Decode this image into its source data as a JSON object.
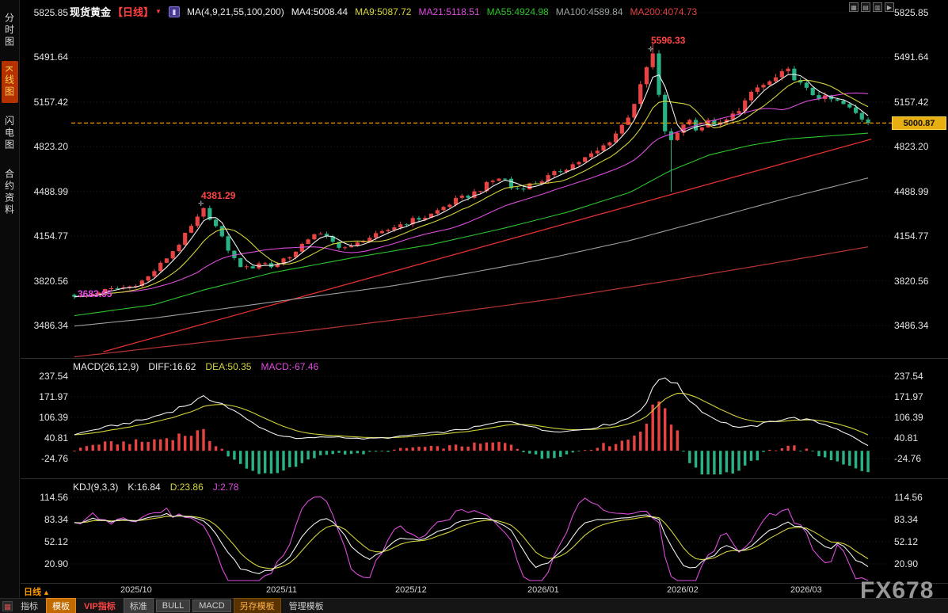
{
  "header": {
    "symbol": "现货黄金",
    "period": "【日线】",
    "ma_group_label": "MA(4,9,21,55,100,200)",
    "ma_values": [
      {
        "label": "MA4:5008.44",
        "color": "#efefef"
      },
      {
        "label": "MA9:5087.72",
        "color": "#d6d63d"
      },
      {
        "label": "MA21:5118.51",
        "color": "#e14ae1"
      },
      {
        "label": "MA55:4924.98",
        "color": "#2dc52d"
      },
      {
        "label": "MA100:4589.84",
        "color": "#9aa0a0"
      },
      {
        "label": "MA200:4074.73",
        "color": "#e04040"
      }
    ]
  },
  "icons": {
    "period_dropdown": "▼",
    "chart_type": "▮",
    "layout_grid": "▦",
    "layout_rows": "▤",
    "layout_cols": "▥",
    "layout_next": "▶",
    "indicator_btn": "▦",
    "peak_marker": "✛"
  },
  "sidebar": {
    "items": [
      {
        "label": "分时图",
        "active": false
      },
      {
        "label": "K线图",
        "active": true
      },
      {
        "label": "闪电图",
        "active": false
      },
      {
        "label": "合约资料",
        "active": false
      }
    ]
  },
  "axes": {
    "price": [
      "5825.85",
      "5491.64",
      "5157.42",
      "4823.20",
      "4488.99",
      "4154.77",
      "3820.56",
      "3486.34"
    ],
    "macd": [
      "237.54",
      "171.97",
      "106.39",
      "40.81",
      "-24.76"
    ],
    "kdj": [
      "114.56",
      "83.34",
      "52.12",
      "20.90"
    ],
    "time": [
      "2025/10",
      "2025/11",
      "2025/12",
      "2026/01",
      "2026/02",
      "2026/03"
    ]
  },
  "annotations": {
    "peak_high": "5596.33",
    "swing_high": "4381.29",
    "swing_low": "3683.65",
    "last_price": "5000.87"
  },
  "indicators": {
    "macd": {
      "title": "MACD(26,12,9)",
      "diff": "DIFF:16.62",
      "dea": "DEA:50.35",
      "macd": "MACD:-67.46"
    },
    "kdj": {
      "title": "KDJ(9,3,3)",
      "k": "K:16.84",
      "d": "D:23.86",
      "j": "J:2.78"
    }
  },
  "footer": {
    "period_label": "日线",
    "period_arrow": "▲",
    "tabs": [
      {
        "label": "指标"
      },
      {
        "label": "模板"
      },
      {
        "label": "VIP指标"
      },
      {
        "label": "标准"
      },
      {
        "label": "BULL"
      },
      {
        "label": "MACD"
      },
      {
        "label": "另存模板"
      },
      {
        "label": "管理模板"
      }
    ],
    "watermark": "FX678"
  },
  "chart_data": {
    "type": "candlestick",
    "symbol": "现货黄金",
    "period": "日线",
    "x_range": [
      "2025/10",
      "2026/03"
    ],
    "price_axis_ticks": [
      5825.85,
      5491.64,
      5157.42,
      4823.2,
      4488.99,
      4154.77,
      3820.56,
      3486.34
    ],
    "last_price": 5000.87,
    "key_levels": {
      "all_time_high": 5596.33,
      "october_high": 4381.29,
      "october_low": 3683.65
    },
    "moving_averages": {
      "MA4": 5008.44,
      "MA9": 5087.72,
      "MA21": 5118.51,
      "MA55": 4924.98,
      "MA100": 4589.84,
      "MA200": 4074.73
    },
    "n_candles": 130,
    "close_path": [
      [
        0,
        3712
      ],
      [
        0.01,
        3695
      ],
      [
        0.03,
        3738
      ],
      [
        0.05,
        3760
      ],
      [
        0.07,
        3778
      ],
      [
        0.09,
        3832
      ],
      [
        0.11,
        3952
      ],
      [
        0.13,
        4085
      ],
      [
        0.15,
        4245
      ],
      [
        0.163,
        4352
      ],
      [
        0.175,
        4262
      ],
      [
        0.19,
        4092
      ],
      [
        0.205,
        3948
      ],
      [
        0.22,
        3906
      ],
      [
        0.235,
        3966
      ],
      [
        0.25,
        3922
      ],
      [
        0.265,
        3992
      ],
      [
        0.282,
        4042
      ],
      [
        0.3,
        4182
      ],
      [
        0.315,
        4152
      ],
      [
        0.33,
        4088
      ],
      [
        0.347,
        4062
      ],
      [
        0.365,
        4132
      ],
      [
        0.385,
        4168
      ],
      [
        0.405,
        4232
      ],
      [
        0.425,
        4272
      ],
      [
        0.445,
        4302
      ],
      [
        0.465,
        4372
      ],
      [
        0.48,
        4422
      ],
      [
        0.495,
        4452
      ],
      [
        0.51,
        4502
      ],
      [
        0.525,
        4562
      ],
      [
        0.54,
        4602
      ],
      [
        0.552,
        4502
      ],
      [
        0.565,
        4522
      ],
      [
        0.585,
        4562
      ],
      [
        0.605,
        4622
      ],
      [
        0.625,
        4682
      ],
      [
        0.645,
        4742
      ],
      [
        0.66,
        4792
      ],
      [
        0.678,
        4892
      ],
      [
        0.695,
        5022
      ],
      [
        0.71,
        5212
      ],
      [
        0.722,
        5432
      ],
      [
        0.728,
        5542
      ],
      [
        0.735,
        5242
      ],
      [
        0.748,
        4822
      ],
      [
        0.76,
        4932
      ],
      [
        0.772,
        5042
      ],
      [
        0.785,
        4952
      ],
      [
        0.8,
        5012
      ],
      [
        0.815,
        4986
      ],
      [
        0.83,
        5062
      ],
      [
        0.845,
        5162
      ],
      [
        0.86,
        5262
      ],
      [
        0.875,
        5302
      ],
      [
        0.89,
        5362
      ],
      [
        0.901,
        5392
      ],
      [
        0.912,
        5302
      ],
      [
        0.925,
        5232
      ],
      [
        0.94,
        5192
      ],
      [
        0.955,
        5172
      ],
      [
        0.968,
        5142
      ],
      [
        0.98,
        5092
      ],
      [
        0.99,
        5046
      ],
      [
        1,
        5000.87
      ]
    ],
    "ma55_path": [
      [
        0,
        3560
      ],
      [
        0.1,
        3642
      ],
      [
        0.163,
        3752
      ],
      [
        0.25,
        3882
      ],
      [
        0.35,
        3992
      ],
      [
        0.45,
        4092
      ],
      [
        0.54,
        4212
      ],
      [
        0.62,
        4332
      ],
      [
        0.7,
        4482
      ],
      [
        0.75,
        4642
      ],
      [
        0.8,
        4762
      ],
      [
        0.85,
        4832
      ],
      [
        0.9,
        4882
      ],
      [
        1,
        4924.98
      ]
    ],
    "ma100_path": [
      [
        0,
        3482
      ],
      [
        0.1,
        3542
      ],
      [
        0.2,
        3622
      ],
      [
        0.3,
        3702
      ],
      [
        0.4,
        3782
      ],
      [
        0.5,
        3882
      ],
      [
        0.6,
        3992
      ],
      [
        0.7,
        4122
      ],
      [
        0.8,
        4282
      ],
      [
        0.9,
        4442
      ],
      [
        1,
        4589.84
      ]
    ],
    "ma200_path": [
      [
        0,
        3252
      ],
      [
        0.15,
        3352
      ],
      [
        0.3,
        3452
      ],
      [
        0.45,
        3562
      ],
      [
        0.6,
        3682
      ],
      [
        0.75,
        3822
      ],
      [
        0.9,
        3972
      ],
      [
        1,
        4074.73
      ]
    ],
    "trendline": {
      "f": [
        0.04,
        1.0
      ],
      "price": [
        3290,
        4880
      ]
    },
    "macd": {
      "ticks": [
        237.54,
        171.97,
        106.39,
        40.81,
        -24.76
      ],
      "diff_path": [
        [
          0,
          52
        ],
        [
          0.03,
          70
        ],
        [
          0.06,
          85
        ],
        [
          0.09,
          100
        ],
        [
          0.12,
          125
        ],
        [
          0.15,
          155
        ],
        [
          0.163,
          168
        ],
        [
          0.18,
          160
        ],
        [
          0.2,
          128
        ],
        [
          0.22,
          95
        ],
        [
          0.25,
          55
        ],
        [
          0.28,
          38
        ],
        [
          0.3,
          42
        ],
        [
          0.33,
          45
        ],
        [
          0.36,
          38
        ],
        [
          0.4,
          42
        ],
        [
          0.43,
          52
        ],
        [
          0.46,
          58
        ],
        [
          0.5,
          72
        ],
        [
          0.53,
          88
        ],
        [
          0.55,
          95
        ],
        [
          0.57,
          82
        ],
        [
          0.59,
          65
        ],
        [
          0.62,
          62
        ],
        [
          0.65,
          72
        ],
        [
          0.68,
          88
        ],
        [
          0.7,
          105
        ],
        [
          0.72,
          150
        ],
        [
          0.735,
          225
        ],
        [
          0.745,
          240
        ],
        [
          0.76,
          205
        ],
        [
          0.78,
          150
        ],
        [
          0.8,
          110
        ],
        [
          0.82,
          88
        ],
        [
          0.84,
          72
        ],
        [
          0.86,
          80
        ],
        [
          0.88,
          95
        ],
        [
          0.9,
          105
        ],
        [
          0.92,
          100
        ],
        [
          0.94,
          88
        ],
        [
          0.96,
          72
        ],
        [
          0.98,
          45
        ],
        [
          1,
          16.62
        ]
      ],
      "last": {
        "DIFF": 16.62,
        "DEA": 50.35,
        "MACD": -67.46
      }
    },
    "kdj": {
      "ticks": [
        114.56,
        83.34,
        52.12,
        20.9
      ],
      "k_path": [
        [
          0,
          78
        ],
        [
          0.02,
          84
        ],
        [
          0.04,
          80
        ],
        [
          0.06,
          86
        ],
        [
          0.08,
          82
        ],
        [
          0.1,
          88
        ],
        [
          0.12,
          90
        ],
        [
          0.14,
          86
        ],
        [
          0.16,
          82
        ],
        [
          0.175,
          70
        ],
        [
          0.19,
          42
        ],
        [
          0.21,
          14
        ],
        [
          0.23,
          8
        ],
        [
          0.25,
          12
        ],
        [
          0.27,
          30
        ],
        [
          0.29,
          62
        ],
        [
          0.31,
          85
        ],
        [
          0.33,
          78
        ],
        [
          0.35,
          45
        ],
        [
          0.37,
          28
        ],
        [
          0.39,
          40
        ],
        [
          0.41,
          60
        ],
        [
          0.43,
          52
        ],
        [
          0.45,
          62
        ],
        [
          0.47,
          72
        ],
        [
          0.49,
          82
        ],
        [
          0.51,
          86
        ],
        [
          0.53,
          84
        ],
        [
          0.55,
          70
        ],
        [
          0.565,
          40
        ],
        [
          0.58,
          18
        ],
        [
          0.6,
          22
        ],
        [
          0.62,
          48
        ],
        [
          0.64,
          75
        ],
        [
          0.66,
          85
        ],
        [
          0.68,
          82
        ],
        [
          0.7,
          88
        ],
        [
          0.72,
          90
        ],
        [
          0.735,
          86
        ],
        [
          0.75,
          50
        ],
        [
          0.765,
          18
        ],
        [
          0.78,
          14
        ],
        [
          0.8,
          30
        ],
        [
          0.82,
          45
        ],
        [
          0.84,
          40
        ],
        [
          0.86,
          52
        ],
        [
          0.88,
          70
        ],
        [
          0.9,
          78
        ],
        [
          0.92,
          72
        ],
        [
          0.935,
          55
        ],
        [
          0.95,
          42
        ],
        [
          0.965,
          50
        ],
        [
          0.98,
          30
        ],
        [
          1,
          16.84
        ]
      ],
      "last": {
        "K": 16.84,
        "D": 23.86,
        "J": 2.78
      }
    }
  }
}
